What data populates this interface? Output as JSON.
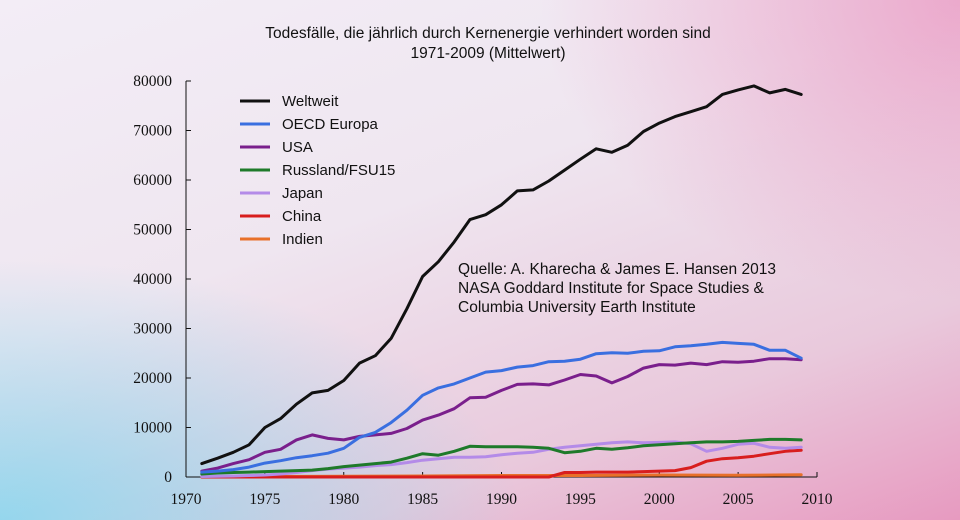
{
  "chart_data": {
    "type": "line",
    "title": "Todesfälle, die jährlich durch Kernenergie verhindert worden sind",
    "subtitle": "1971-2009 (Mittelwert)",
    "xlim": [
      1970,
      2010
    ],
    "ylim": [
      0,
      80000
    ],
    "x_ticks": [
      1970,
      1975,
      1980,
      1985,
      1990,
      1995,
      2000,
      2005,
      2010
    ],
    "y_ticks": [
      0,
      10000,
      20000,
      30000,
      40000,
      50000,
      60000,
      70000,
      80000
    ],
    "grid": false,
    "legend_position": "top-left",
    "annotation": [
      "Quelle: A. Kharecha & James E. Hansen 2013",
      "NASA Goddard Institute for Space Studies &",
      "Columbia University Earth Institute"
    ],
    "series": [
      {
        "name": "Weltweit",
        "color": "#111111",
        "points": [
          [
            1971,
            2700
          ],
          [
            1972,
            3800
          ],
          [
            1973,
            5000
          ],
          [
            1974,
            6500
          ],
          [
            1975,
            10000
          ],
          [
            1976,
            11800
          ],
          [
            1977,
            14700
          ],
          [
            1978,
            17000
          ],
          [
            1979,
            17500
          ],
          [
            1980,
            19500
          ],
          [
            1981,
            23000
          ],
          [
            1982,
            24500
          ],
          [
            1983,
            28000
          ],
          [
            1984,
            34000
          ],
          [
            1985,
            40500
          ],
          [
            1986,
            43500
          ],
          [
            1987,
            47500
          ],
          [
            1988,
            52000
          ],
          [
            1989,
            53000
          ],
          [
            1990,
            55000
          ],
          [
            1991,
            57800
          ],
          [
            1992,
            58000
          ],
          [
            1993,
            59800
          ],
          [
            1994,
            62000
          ],
          [
            1995,
            64200
          ],
          [
            1996,
            66300
          ],
          [
            1997,
            65600
          ],
          [
            1998,
            67000
          ],
          [
            1999,
            69800
          ],
          [
            2000,
            71500
          ],
          [
            2001,
            72800
          ],
          [
            2002,
            73800
          ],
          [
            2003,
            74800
          ],
          [
            2004,
            77300
          ],
          [
            2005,
            78200
          ],
          [
            2006,
            79000
          ],
          [
            2007,
            77600
          ],
          [
            2008,
            78300
          ],
          [
            2009,
            77300
          ]
        ]
      },
      {
        "name": "OECD Europa",
        "color": "#3a6fe0",
        "points": [
          [
            1971,
            1000
          ],
          [
            1972,
            1200
          ],
          [
            1973,
            1500
          ],
          [
            1974,
            2000
          ],
          [
            1975,
            2800
          ],
          [
            1976,
            3300
          ],
          [
            1977,
            3900
          ],
          [
            1978,
            4300
          ],
          [
            1979,
            4800
          ],
          [
            1980,
            5800
          ],
          [
            1981,
            8000
          ],
          [
            1982,
            9000
          ],
          [
            1983,
            11000
          ],
          [
            1984,
            13500
          ],
          [
            1985,
            16500
          ],
          [
            1986,
            18000
          ],
          [
            1987,
            18800
          ],
          [
            1988,
            20000
          ],
          [
            1989,
            21200
          ],
          [
            1990,
            21500
          ],
          [
            1991,
            22200
          ],
          [
            1992,
            22500
          ],
          [
            1993,
            23300
          ],
          [
            1994,
            23400
          ],
          [
            1995,
            23800
          ],
          [
            1996,
            24900
          ],
          [
            1997,
            25100
          ],
          [
            1998,
            25000
          ],
          [
            1999,
            25400
          ],
          [
            2000,
            25500
          ],
          [
            2001,
            26300
          ],
          [
            2002,
            26500
          ],
          [
            2003,
            26800
          ],
          [
            2004,
            27200
          ],
          [
            2005,
            27000
          ],
          [
            2006,
            26800
          ],
          [
            2007,
            25600
          ],
          [
            2008,
            25600
          ],
          [
            2009,
            24000
          ]
        ]
      },
      {
        "name": "USA",
        "color": "#7a1f8c",
        "points": [
          [
            1971,
            1200
          ],
          [
            1972,
            1800
          ],
          [
            1973,
            2700
          ],
          [
            1974,
            3500
          ],
          [
            1975,
            5000
          ],
          [
            1976,
            5600
          ],
          [
            1977,
            7500
          ],
          [
            1978,
            8500
          ],
          [
            1979,
            7800
          ],
          [
            1980,
            7500
          ],
          [
            1981,
            8200
          ],
          [
            1982,
            8500
          ],
          [
            1983,
            8800
          ],
          [
            1984,
            9800
          ],
          [
            1985,
            11500
          ],
          [
            1986,
            12500
          ],
          [
            1987,
            13800
          ],
          [
            1988,
            16000
          ],
          [
            1989,
            16100
          ],
          [
            1990,
            17500
          ],
          [
            1991,
            18700
          ],
          [
            1992,
            18800
          ],
          [
            1993,
            18600
          ],
          [
            1994,
            19600
          ],
          [
            1995,
            20700
          ],
          [
            1996,
            20400
          ],
          [
            1997,
            19000
          ],
          [
            1998,
            20300
          ],
          [
            1999,
            22000
          ],
          [
            2000,
            22700
          ],
          [
            2001,
            22600
          ],
          [
            2002,
            23000
          ],
          [
            2003,
            22700
          ],
          [
            2004,
            23300
          ],
          [
            2005,
            23200
          ],
          [
            2006,
            23400
          ],
          [
            2007,
            23900
          ],
          [
            2008,
            23900
          ],
          [
            2009,
            23700
          ]
        ]
      },
      {
        "name": "Russland/FSU15",
        "color": "#1e7a2a",
        "points": [
          [
            1971,
            600
          ],
          [
            1972,
            800
          ],
          [
            1973,
            900
          ],
          [
            1974,
            1000
          ],
          [
            1975,
            1100
          ],
          [
            1976,
            1200
          ],
          [
            1977,
            1300
          ],
          [
            1978,
            1400
          ],
          [
            1979,
            1700
          ],
          [
            1980,
            2100
          ],
          [
            1981,
            2400
          ],
          [
            1982,
            2700
          ],
          [
            1983,
            3000
          ],
          [
            1984,
            3800
          ],
          [
            1985,
            4700
          ],
          [
            1986,
            4400
          ],
          [
            1987,
            5200
          ],
          [
            1988,
            6200
          ],
          [
            1989,
            6100
          ],
          [
            1990,
            6100
          ],
          [
            1991,
            6100
          ],
          [
            1992,
            6000
          ],
          [
            1993,
            5800
          ],
          [
            1994,
            4900
          ],
          [
            1995,
            5200
          ],
          [
            1996,
            5800
          ],
          [
            1997,
            5600
          ],
          [
            1998,
            5900
          ],
          [
            1999,
            6300
          ],
          [
            2000,
            6500
          ],
          [
            2001,
            6700
          ],
          [
            2002,
            6900
          ],
          [
            2003,
            7100
          ],
          [
            2004,
            7100
          ],
          [
            2005,
            7200
          ],
          [
            2006,
            7400
          ],
          [
            2007,
            7600
          ],
          [
            2008,
            7600
          ],
          [
            2009,
            7500
          ]
        ]
      },
      {
        "name": "Japan",
        "color": "#b48be8",
        "points": [
          [
            1971,
            100
          ],
          [
            1972,
            150
          ],
          [
            1973,
            200
          ],
          [
            1974,
            300
          ],
          [
            1975,
            400
          ],
          [
            1976,
            600
          ],
          [
            1977,
            900
          ],
          [
            1978,
            1300
          ],
          [
            1979,
            1600
          ],
          [
            1980,
            1800
          ],
          [
            1981,
            2000
          ],
          [
            1982,
            2300
          ],
          [
            1983,
            2500
          ],
          [
            1984,
            2900
          ],
          [
            1985,
            3400
          ],
          [
            1986,
            3700
          ],
          [
            1987,
            4000
          ],
          [
            1988,
            4000
          ],
          [
            1989,
            4100
          ],
          [
            1990,
            4500
          ],
          [
            1991,
            4800
          ],
          [
            1992,
            5000
          ],
          [
            1993,
            5600
          ],
          [
            1994,
            6000
          ],
          [
            1995,
            6300
          ],
          [
            1996,
            6600
          ],
          [
            1997,
            6900
          ],
          [
            1998,
            7100
          ],
          [
            1999,
            6900
          ],
          [
            2000,
            7000
          ],
          [
            2001,
            7100
          ],
          [
            2002,
            6700
          ],
          [
            2003,
            5200
          ],
          [
            2004,
            5800
          ],
          [
            2005,
            6600
          ],
          [
            2006,
            6800
          ],
          [
            2007,
            6000
          ],
          [
            2008,
            5800
          ],
          [
            2009,
            6000
          ]
        ]
      },
      {
        "name": "China",
        "color": "#d81e1e",
        "points": [
          [
            1971,
            0
          ],
          [
            1980,
            0
          ],
          [
            1990,
            0
          ],
          [
            1993,
            0
          ],
          [
            1994,
            900
          ],
          [
            1995,
            900
          ],
          [
            1996,
            1000
          ],
          [
            1997,
            1000
          ],
          [
            1998,
            1000
          ],
          [
            1999,
            1100
          ],
          [
            2000,
            1200
          ],
          [
            2001,
            1300
          ],
          [
            2002,
            1900
          ],
          [
            2003,
            3200
          ],
          [
            2004,
            3700
          ],
          [
            2005,
            3900
          ],
          [
            2006,
            4200
          ],
          [
            2007,
            4700
          ],
          [
            2008,
            5200
          ],
          [
            2009,
            5400
          ]
        ]
      },
      {
        "name": "Indien",
        "color": "#e8702a",
        "points": [
          [
            1971,
            0
          ],
          [
            1975,
            100
          ],
          [
            1980,
            150
          ],
          [
            1985,
            200
          ],
          [
            1990,
            300
          ],
          [
            1995,
            300
          ],
          [
            2000,
            400
          ],
          [
            2005,
            350
          ],
          [
            2009,
            450
          ]
        ]
      }
    ]
  }
}
